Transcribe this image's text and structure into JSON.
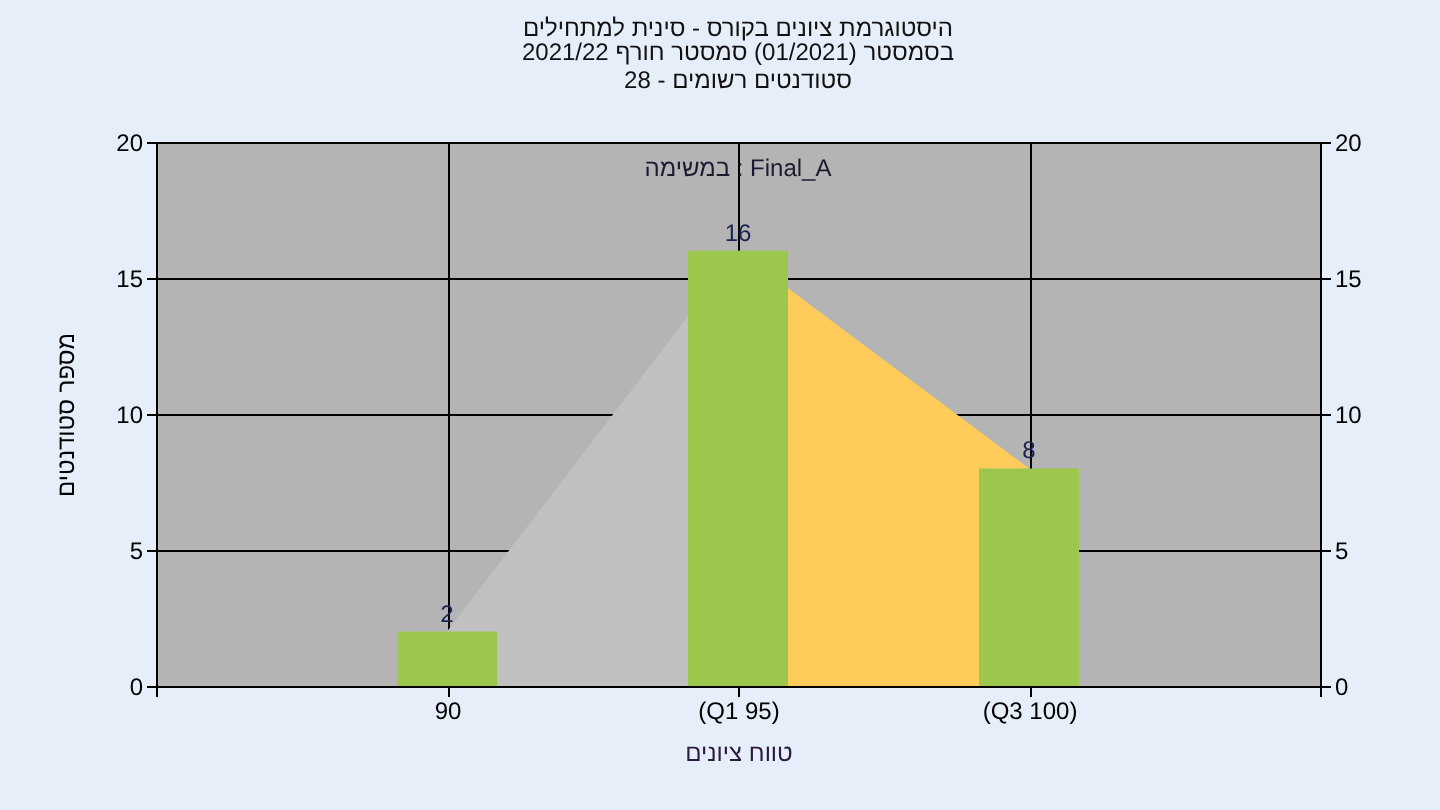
{
  "chart_data": {
    "type": "bar",
    "title": "היסטוגרמת ציונים בקורס - סינית למתחילים",
    "subtitle": "בסמסטר (01/2021) סמסטר חורף 2021/22\nסטודנטים רשומים - 28",
    "xlabel": "טווח ציונים",
    "ylabel": "מספר סטודנטים",
    "annotations": [
      "במשימה : Final_A"
    ],
    "categories": [
      null,
      "90",
      "(Q1 95)",
      "(Q3 100)",
      null
    ],
    "series": [
      {
        "type": "area",
        "color": "#c0c0c0",
        "values": [
          null,
          2,
          16,
          null,
          null
        ]
      },
      {
        "type": "area",
        "color": "#ffcc5c",
        "values": [
          null,
          null,
          16,
          8,
          null
        ]
      },
      {
        "color": "#9cc64c",
        "values": [
          null,
          2,
          16,
          8,
          null
        ],
        "value_labels": [
          null,
          "2",
          "16",
          "8",
          null
        ]
      }
    ],
    "ylim": [
      0,
      20
    ],
    "yticks": [
      0,
      5,
      10,
      15,
      20
    ],
    "y2lim": [
      0,
      20
    ],
    "y2ticks": [
      0,
      5,
      10,
      15,
      20
    ],
    "grid": true
  }
}
